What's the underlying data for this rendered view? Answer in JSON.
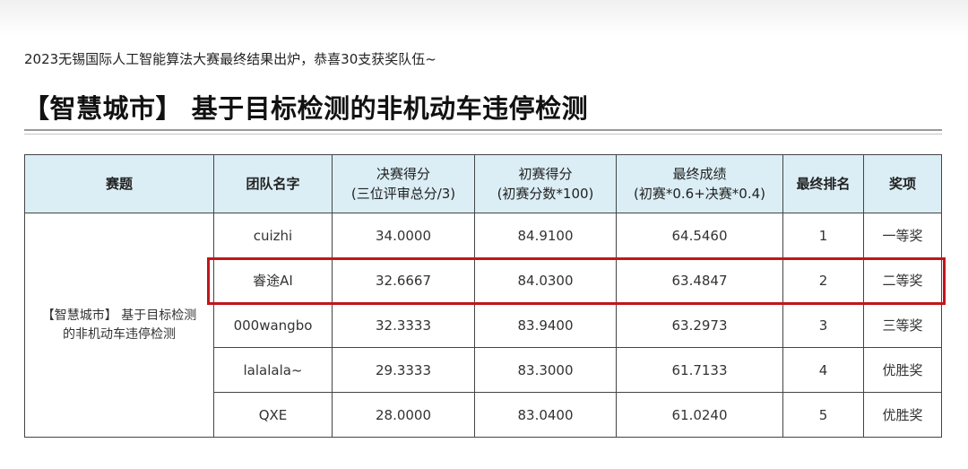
{
  "intro": "2023无锡国际人工智能算法大赛最终结果出炉，恭喜30支获奖队伍~",
  "headline": "【智慧城市】 基于目标检测的非机动车违停检测",
  "table": {
    "headers": {
      "topic": "赛题",
      "team": "团队名字",
      "final_score": "决赛得分",
      "final_score_note": "(三位评审总分/3)",
      "prelim_score": "初赛得分",
      "prelim_score_note": "(初赛分数*100)",
      "overall": "最终成绩",
      "overall_note": "(初赛*0.6+决赛*0.4)",
      "rank": "最终排名",
      "award": "奖项"
    },
    "topic_line1": "【智慧城市】 基于目标检测",
    "topic_line2": "的非机动车违停检测",
    "rows": [
      {
        "team": "cuizhi",
        "final": "34.0000",
        "prelim": "84.9100",
        "overall": "64.5460",
        "rank": "1",
        "award": "一等奖"
      },
      {
        "team": "睿途AI",
        "final": "32.6667",
        "prelim": "84.0300",
        "overall": "63.4847",
        "rank": "2",
        "award": "二等奖"
      },
      {
        "team": "000wangbo",
        "final": "32.3333",
        "prelim": "83.9400",
        "overall": "63.2973",
        "rank": "3",
        "award": "三等奖"
      },
      {
        "team": "lalalala~",
        "final": "29.3333",
        "prelim": "83.3000",
        "overall": "61.7133",
        "rank": "4",
        "award": "优胜奖"
      },
      {
        "team": "QXE",
        "final": "28.0000",
        "prelim": "83.0400",
        "overall": "61.0240",
        "rank": "5",
        "award": "优胜奖"
      }
    ]
  },
  "highlight_color": "#c0161c",
  "header_bg": "#dbeef5"
}
